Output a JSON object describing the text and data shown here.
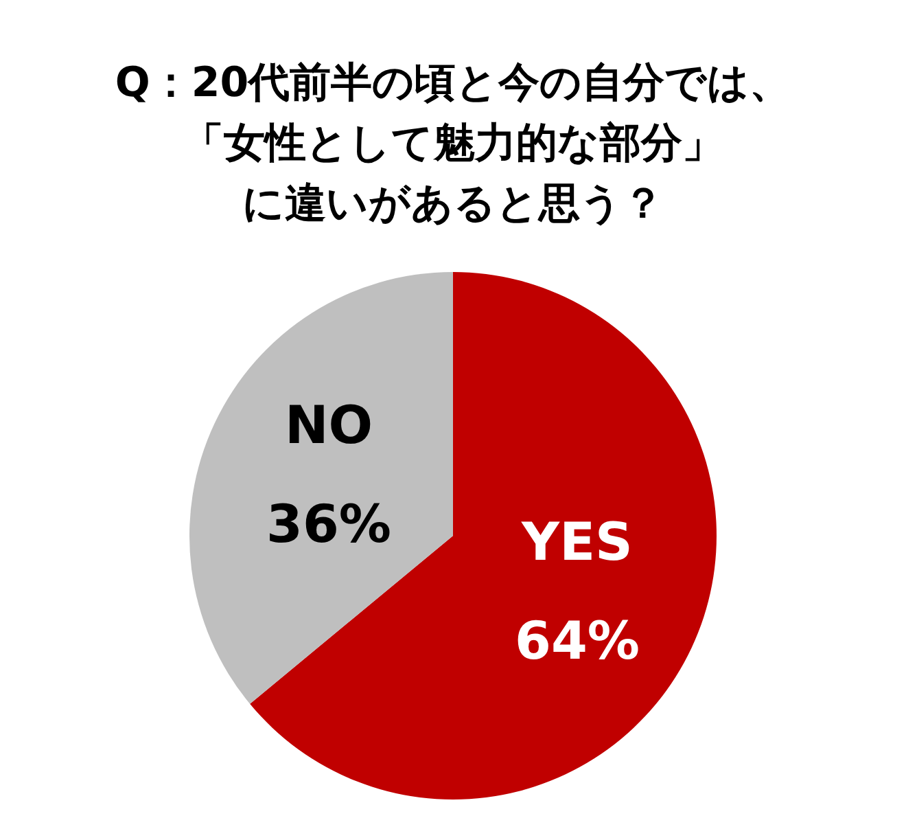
{
  "chart_data": {
    "type": "pie",
    "title": "Q：20代前半の頃と今の自分では、「女性として魅力的な部分」に違いがあると思う？",
    "categories": [
      "YES",
      "NO"
    ],
    "values": [
      64,
      36
    ],
    "colors": [
      "#c00000",
      "#bfbfbf"
    ],
    "value_labels": [
      "64%",
      "36%"
    ]
  }
}
